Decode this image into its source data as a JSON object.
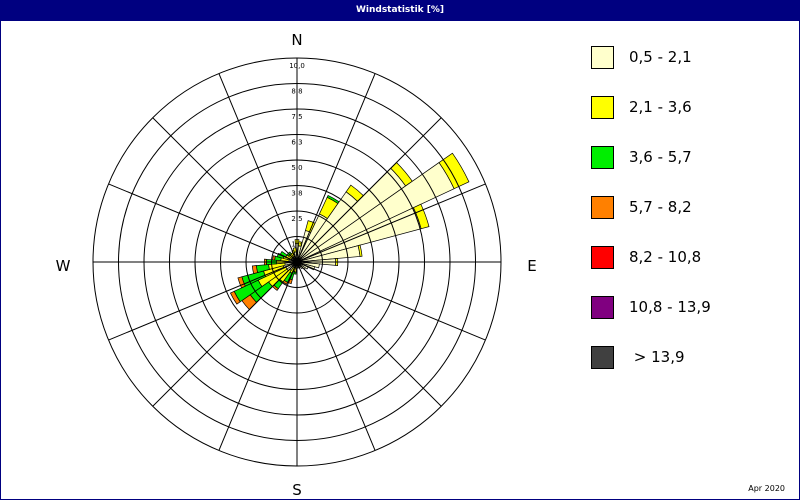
{
  "title": "Windstatistik [%]",
  "directions": {
    "n": "N",
    "e": "E",
    "s": "S",
    "w": "W"
  },
  "footer": "Apr 2020",
  "legend": [
    {
      "label": "0,5 - 2,1",
      "color": "#FFFFCC"
    },
    {
      "label": "2,1 - 3,6",
      "color": "#FFFF00"
    },
    {
      "label": "3,6 - 5,7",
      "color": "#00EE00"
    },
    {
      "label": "5,7 - 8,2",
      "color": "#FF8000"
    },
    {
      "label": "8,2 - 10,8",
      "color": "#FF0000"
    },
    {
      "label": "10,8 - 13,9",
      "color": "#800080"
    },
    {
      "label": " > 13,9",
      "color": "#404040"
    }
  ],
  "chart_data": {
    "type": "polar-stacked-bar",
    "title": "Windstatistik [%]",
    "r_max": 10.0,
    "ring_labels": [
      "1,3",
      "2,5",
      "3,8",
      "5,0",
      "6,3",
      "7,5",
      "8,8",
      "10,0"
    ],
    "ring_values": [
      1.25,
      2.5,
      3.75,
      5.0,
      6.25,
      7.5,
      8.75,
      10.0
    ],
    "sectors": 36,
    "sector_width_deg": 10,
    "speed_classes": [
      "0,5 - 2,1",
      "2,1 - 3,6",
      "3,6 - 5,7",
      "5,7 - 8,2",
      "8,2 - 10,8",
      "10,8 - 13,9",
      "> 13,9"
    ],
    "series": [
      {
        "name": "0,5 - 2,1",
        "color": "#FFFFCC",
        "values": [
          0.9,
          0.8,
          1.6,
          2.6,
          4.2,
          6.5,
          8.5,
          6.3,
          3.1,
          1.9,
          1.1,
          0.9,
          0.6,
          0.5,
          0.4,
          0.3,
          0.3,
          0.3,
          0.3,
          0.3,
          0.3,
          0.3,
          0.5,
          0.6,
          0.6,
          0.7,
          0.6,
          0.5,
          0.4,
          0.4,
          0.3,
          0.3,
          0.3,
          0.3,
          0.4,
          0.5
        ]
      },
      {
        "name": "2,1 - 3,6",
        "color": "#FFFF00",
        "values": [
          0.2,
          0.2,
          0.5,
          0.9,
          0.4,
          0.4,
          0.8,
          0.4,
          0.1,
          0.1,
          0,
          0,
          0,
          0,
          0,
          0,
          0,
          0,
          0,
          0.2,
          0.2,
          0.3,
          0.7,
          1.1,
          1.5,
          1.0,
          0.8,
          0.5,
          0.4,
          0.3,
          0.3,
          0.2,
          0.2,
          0.2,
          0.2,
          0.2
        ]
      },
      {
        "name": "3,6 - 5,7",
        "color": "#00EE00",
        "values": [
          0,
          0,
          0,
          0.1,
          0,
          0,
          0,
          0,
          0,
          0,
          0,
          0,
          0,
          0,
          0,
          0,
          0,
          0,
          0,
          0.1,
          0.4,
          0.5,
          0.4,
          1.1,
          1.3,
          1.1,
          0.6,
          0.5,
          0.3,
          0.3,
          0.3,
          0.1,
          0.1,
          0,
          0,
          0
        ]
      },
      {
        "name": "5,7 - 8,2",
        "color": "#FF8000",
        "values": [
          0,
          0,
          0,
          0,
          0,
          0,
          0,
          0,
          0,
          0,
          0,
          0,
          0,
          0,
          0,
          0,
          0,
          0,
          0,
          0,
          0.2,
          0.1,
          0.1,
          0.5,
          0.2,
          0.2,
          0.2,
          0.1,
          0.1,
          0,
          0,
          0,
          0,
          0,
          0,
          0
        ]
      },
      {
        "name": "8,2 - 10,8",
        "color": "#FF0000",
        "values": [
          0,
          0,
          0,
          0,
          0,
          0,
          0,
          0,
          0,
          0,
          0,
          0,
          0,
          0,
          0,
          0,
          0,
          0,
          0,
          0,
          0,
          0,
          0,
          0,
          0,
          0,
          0,
          0,
          0,
          0,
          0,
          0,
          0,
          0,
          0,
          0
        ]
      },
      {
        "name": "10,8 - 13,9",
        "color": "#800080",
        "values": [
          0,
          0,
          0,
          0,
          0,
          0,
          0,
          0,
          0,
          0,
          0,
          0,
          0,
          0,
          0,
          0,
          0,
          0,
          0,
          0,
          0,
          0,
          0,
          0,
          0,
          0,
          0,
          0,
          0,
          0,
          0,
          0,
          0,
          0,
          0,
          0
        ]
      },
      {
        "name": "> 13,9",
        "color": "#404040",
        "values": [
          0,
          0,
          0,
          0,
          0,
          0,
          0,
          0,
          0,
          0,
          0,
          0,
          0,
          0,
          0,
          0,
          0,
          0,
          0,
          0,
          0,
          0,
          0,
          0,
          0,
          0,
          0,
          0,
          0,
          0,
          0,
          0,
          0,
          0,
          0,
          0
        ]
      }
    ],
    "grid": true,
    "legend_position": "right"
  }
}
